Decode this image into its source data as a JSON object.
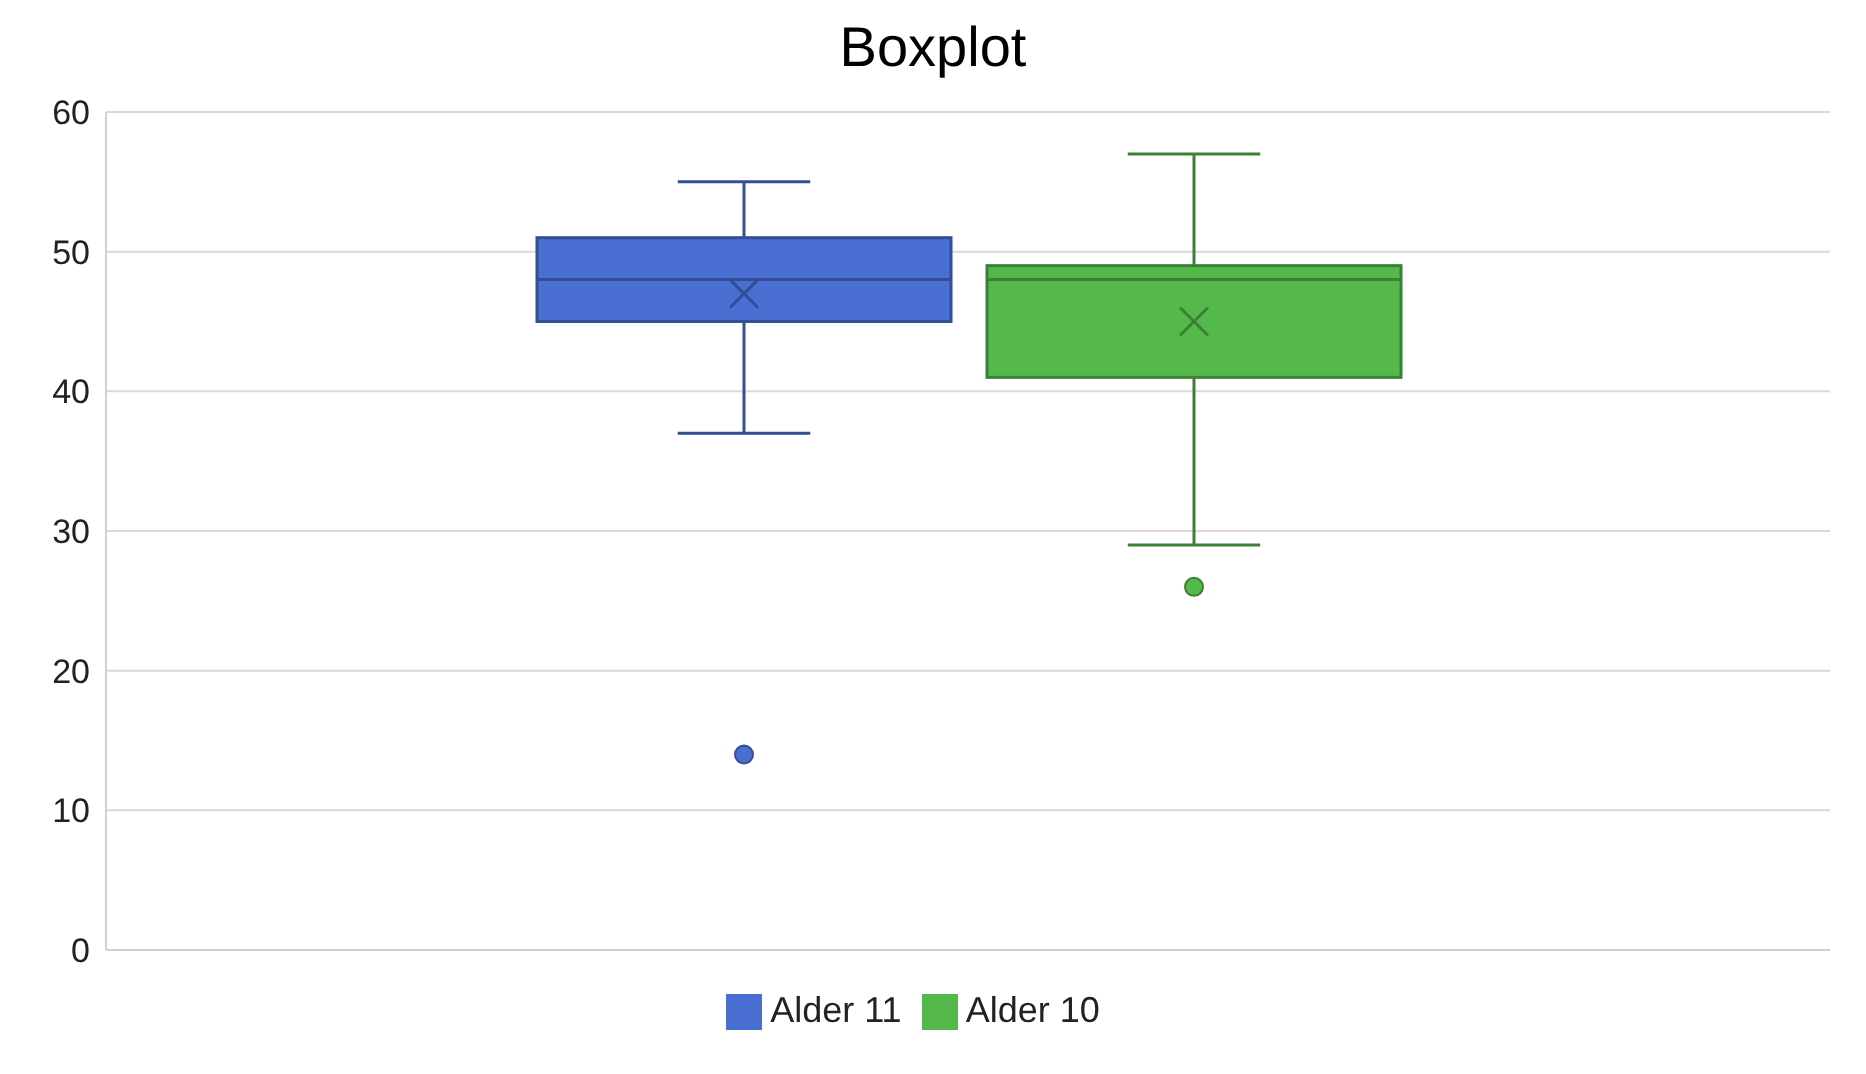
{
  "chart_data": {
    "type": "box",
    "title": "Boxplot",
    "categories": [
      null
    ],
    "series": [
      {
        "name": "Alder 11",
        "color": "#4a6fd3",
        "boxes": [
          {
            "low": 37,
            "q1": 45,
            "median": 48,
            "q3": 51,
            "high": 55,
            "mean": 47,
            "outliers": [
              14
            ]
          }
        ]
      },
      {
        "name": "Alder 10",
        "color": "#55b84b",
        "boxes": [
          {
            "low": 29,
            "q1": 41,
            "median": 48,
            "q3": 49,
            "high": 57,
            "mean": 45,
            "outliers": [
              26
            ]
          }
        ]
      }
    ],
    "ylim": [
      0,
      60
    ],
    "yticks": [
      0,
      10,
      20,
      30,
      40,
      50,
      60
    ],
    "grid": "y",
    "legend": "bottom",
    "marker": "cross"
  }
}
